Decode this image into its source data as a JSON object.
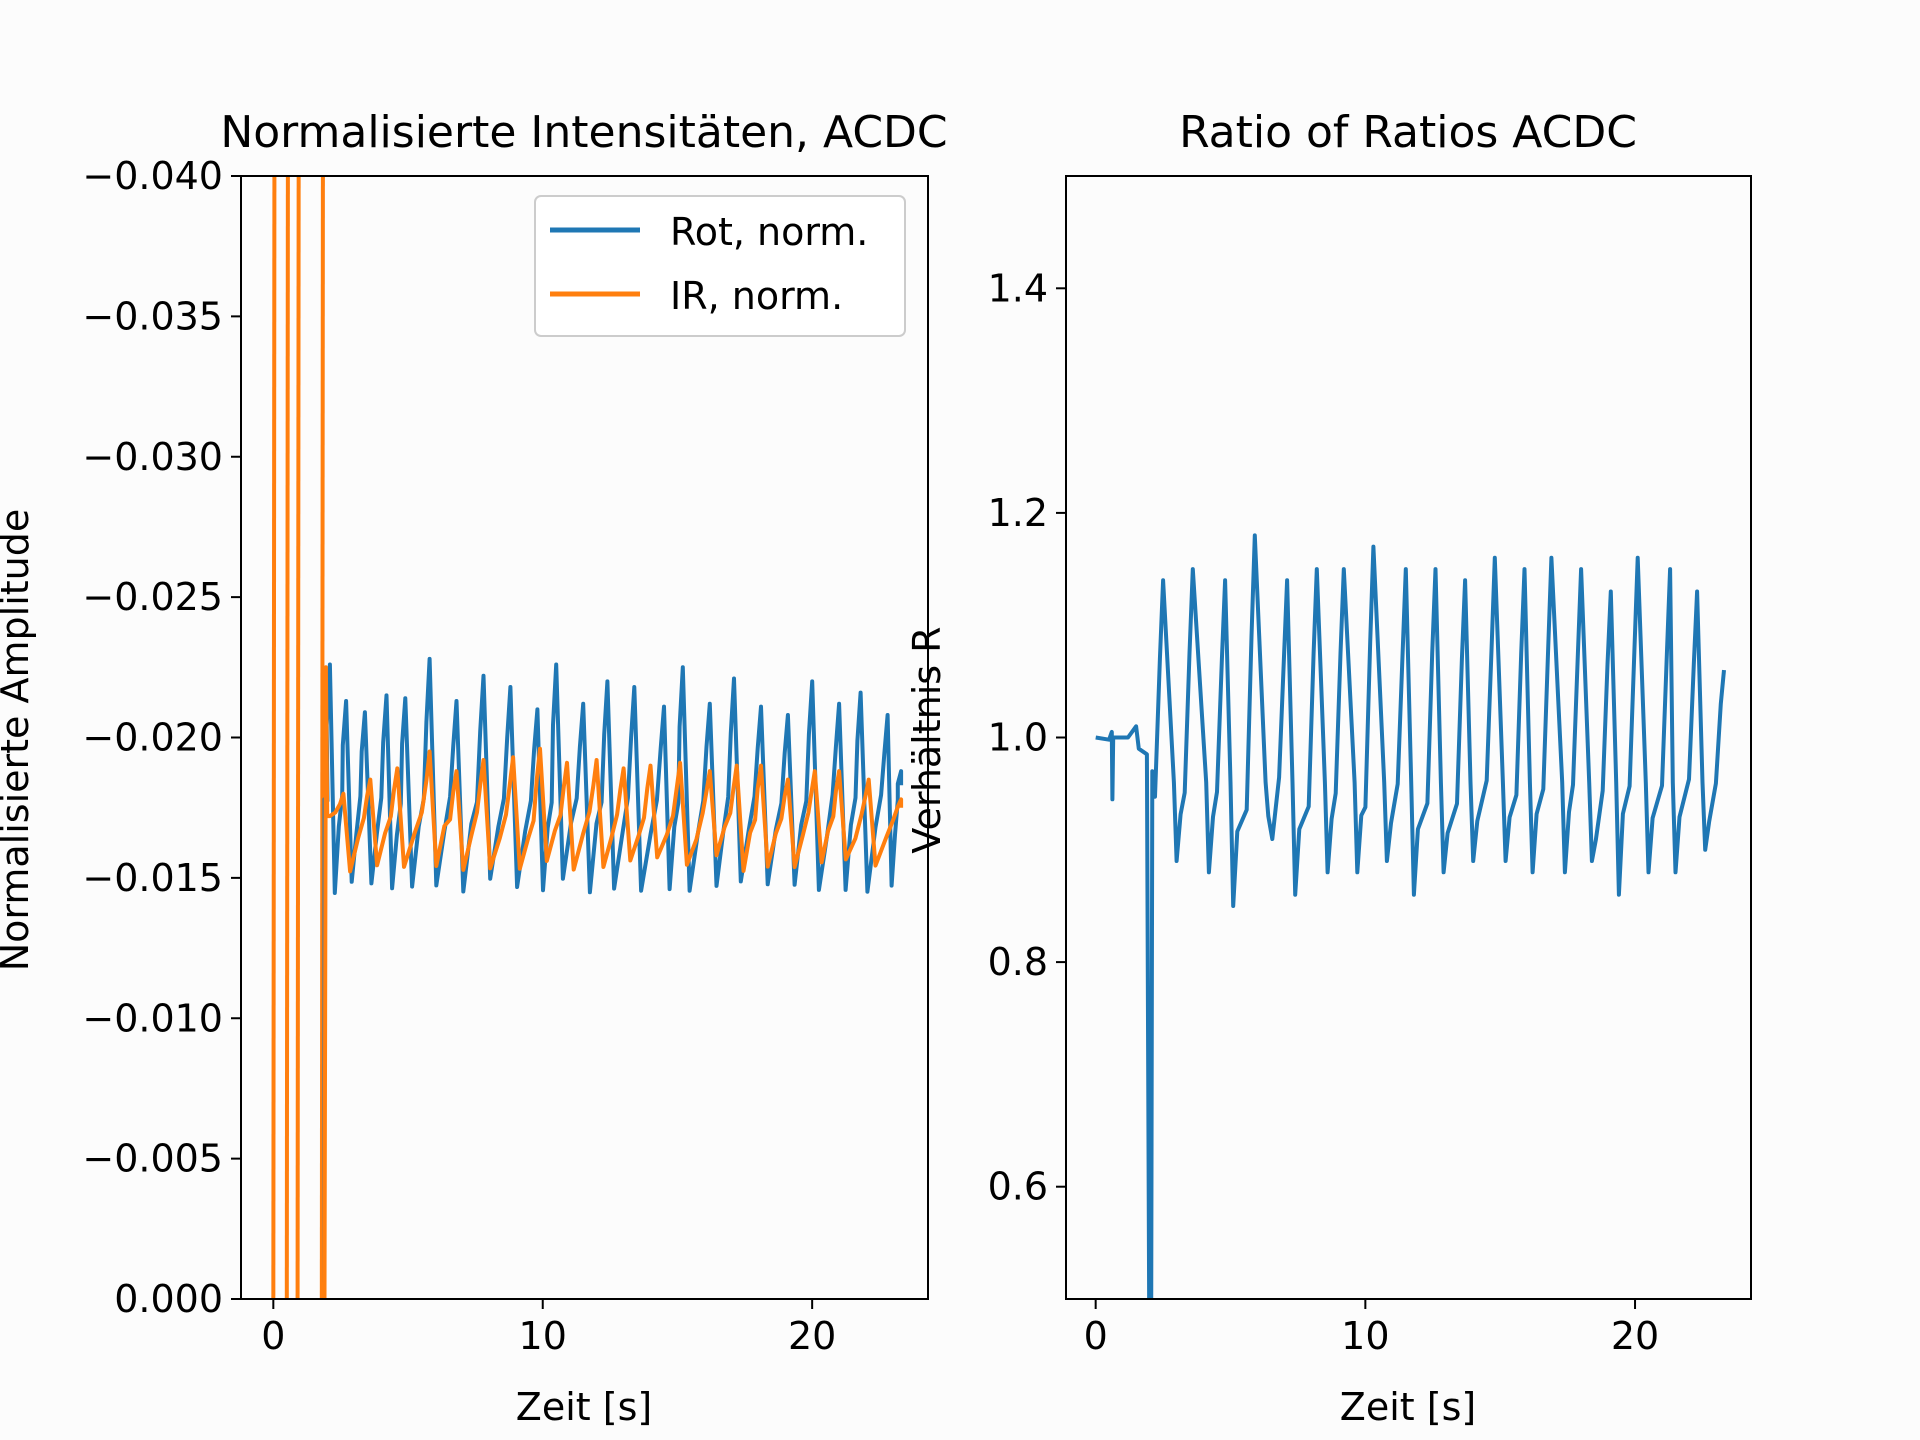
{
  "chart_data": [
    {
      "type": "line",
      "title": "Normalisierte Intensitäten, ACDC",
      "xlabel": "Zeit [s]",
      "ylabel": "Normalisierte Amplitude",
      "xlim": [
        -1.2,
        24.3
      ],
      "ylim": [
        0.0,
        -0.04
      ],
      "y_inverted": true,
      "xticks": [
        0,
        10,
        20
      ],
      "xtick_labels": [
        "0",
        "10",
        "20"
      ],
      "yticks": [
        -0.04,
        -0.035,
        -0.03,
        -0.025,
        -0.02,
        -0.015,
        -0.01,
        -0.005,
        0.0
      ],
      "ytick_labels": [
        "−0.040",
        "−0.035",
        "−0.030",
        "−0.025",
        "−0.020",
        "−0.015",
        "−0.010",
        "−0.005",
        "0.000"
      ],
      "legend_position": "top-right",
      "series": [
        {
          "name": "Rot, norm.",
          "color": "#1f77b4",
          "baseline": -0.0178,
          "low": -0.0147,
          "peaks": [
            [
              2.1,
              -0.0226
            ],
            [
              2.7,
              -0.0213
            ],
            [
              3.4,
              -0.0209
            ],
            [
              4.2,
              -0.0215
            ],
            [
              4.9,
              -0.0214
            ],
            [
              5.8,
              -0.0228
            ],
            [
              6.8,
              -0.0213
            ],
            [
              7.8,
              -0.0222
            ],
            [
              8.8,
              -0.0218
            ],
            [
              9.8,
              -0.021
            ],
            [
              10.5,
              -0.0226
            ],
            [
              11.5,
              -0.0212
            ],
            [
              12.4,
              -0.022
            ],
            [
              13.4,
              -0.0218
            ],
            [
              14.5,
              -0.0211
            ],
            [
              15.2,
              -0.0225
            ],
            [
              16.2,
              -0.0212
            ],
            [
              17.1,
              -0.0221
            ],
            [
              18.1,
              -0.0211
            ],
            [
              19.1,
              -0.0208
            ],
            [
              20.0,
              -0.022
            ],
            [
              21.0,
              -0.0212
            ],
            [
              21.8,
              -0.0216
            ],
            [
              22.8,
              -0.0208
            ],
            [
              23.3,
              -0.0188
            ]
          ],
          "spikes": [],
          "x_start": 1.9,
          "x_end": 23.3
        },
        {
          "name": "IR, norm.",
          "color": "#ff7f0e",
          "baseline": -0.0172,
          "low": -0.0155,
          "peaks": [
            [
              2.6,
              -0.018
            ],
            [
              3.6,
              -0.0185
            ],
            [
              4.6,
              -0.0189
            ],
            [
              5.8,
              -0.0195
            ],
            [
              6.8,
              -0.0188
            ],
            [
              7.8,
              -0.0192
            ],
            [
              8.9,
              -0.0193
            ],
            [
              9.9,
              -0.0196
            ],
            [
              10.9,
              -0.0191
            ],
            [
              12.0,
              -0.0192
            ],
            [
              13.0,
              -0.0189
            ],
            [
              14.0,
              -0.019
            ],
            [
              15.1,
              -0.0191
            ],
            [
              16.2,
              -0.0188
            ],
            [
              17.2,
              -0.019
            ],
            [
              18.1,
              -0.019
            ],
            [
              19.1,
              -0.0185
            ],
            [
              20.1,
              -0.0188
            ],
            [
              21.0,
              -0.0188
            ],
            [
              22.1,
              -0.0185
            ],
            [
              23.3,
              -0.0178
            ]
          ],
          "spikes": [
            0.0,
            0.5,
            0.9,
            1.8
          ],
          "x_start": 1.9,
          "x_end": 23.3
        }
      ]
    },
    {
      "type": "line",
      "title": "Ratio of Ratios ACDC",
      "xlabel": "Zeit [s]",
      "ylabel": "Verhältnis R",
      "xlim": [
        -1.1,
        24.3
      ],
      "ylim": [
        0.5,
        1.5
      ],
      "xticks": [
        0,
        10,
        20
      ],
      "xtick_labels": [
        "0",
        "10",
        "20"
      ],
      "yticks": [
        0.6,
        0.8,
        1.0,
        1.2,
        1.4
      ],
      "ytick_labels": [
        "0.6",
        "0.8",
        "1.0",
        "1.2",
        "1.4"
      ],
      "series": [
        {
          "color": "#1f77b4",
          "initial_level": 1.0,
          "drop_at": 2.0,
          "peaks": [
            [
              2.5,
              1.14
            ],
            [
              3.6,
              1.15
            ],
            [
              4.8,
              1.14
            ],
            [
              5.9,
              1.18
            ],
            [
              7.1,
              1.14
            ],
            [
              8.2,
              1.15
            ],
            [
              9.2,
              1.15
            ],
            [
              10.3,
              1.17
            ],
            [
              11.5,
              1.15
            ],
            [
              12.6,
              1.15
            ],
            [
              13.7,
              1.14
            ],
            [
              14.8,
              1.16
            ],
            [
              15.9,
              1.15
            ],
            [
              16.9,
              1.16
            ],
            [
              18.0,
              1.15
            ],
            [
              19.1,
              1.13
            ],
            [
              20.1,
              1.16
            ],
            [
              21.3,
              1.15
            ],
            [
              22.3,
              1.13
            ],
            [
              23.3,
              1.06
            ]
          ],
          "troughs": [
            [
              3.0,
              0.89
            ],
            [
              4.2,
              0.88
            ],
            [
              5.1,
              0.85
            ],
            [
              6.4,
              0.93
            ],
            [
              7.4,
              0.86
            ],
            [
              8.6,
              0.88
            ],
            [
              9.7,
              0.88
            ],
            [
              10.8,
              0.89
            ],
            [
              11.8,
              0.86
            ],
            [
              12.9,
              0.88
            ],
            [
              14.0,
              0.89
            ],
            [
              15.2,
              0.89
            ],
            [
              16.2,
              0.88
            ],
            [
              17.4,
              0.88
            ],
            [
              18.4,
              0.89
            ],
            [
              19.4,
              0.86
            ],
            [
              20.5,
              0.88
            ],
            [
              21.5,
              0.88
            ],
            [
              22.6,
              0.9
            ]
          ],
          "x_end": 23.3
        }
      ]
    }
  ]
}
